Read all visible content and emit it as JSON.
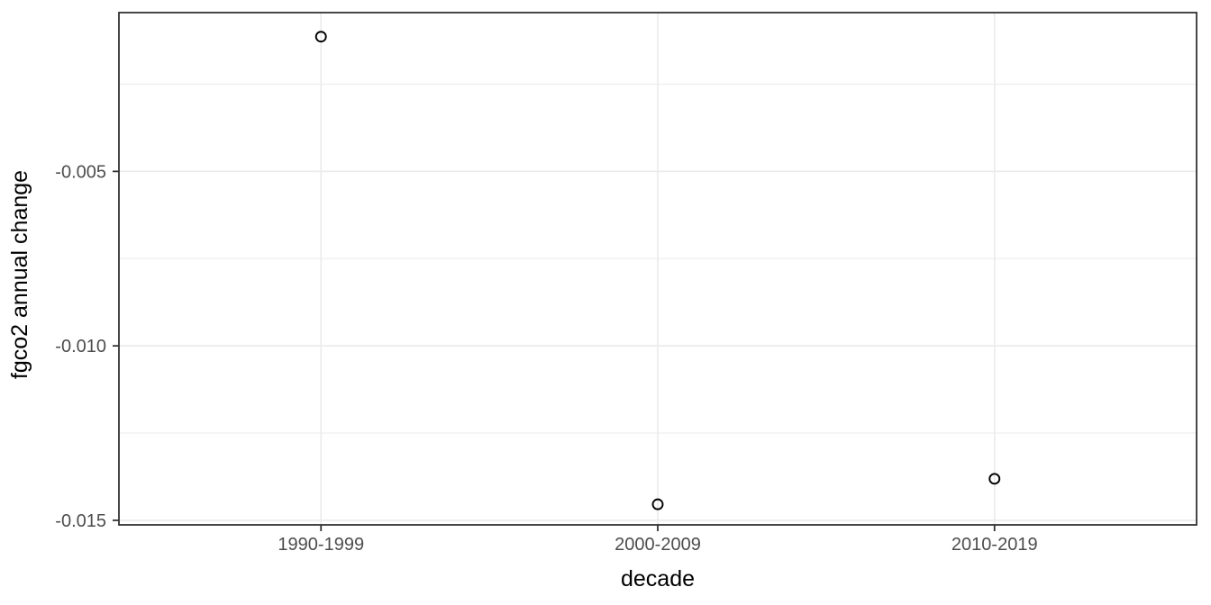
{
  "chart_data": {
    "type": "scatter",
    "title": "",
    "xlabel": "decade",
    "ylabel": "fgco2 annual change",
    "categories": [
      "1990-1999",
      "2000-2009",
      "2010-2019"
    ],
    "values": [
      -0.00114,
      -0.01454,
      -0.01381
    ],
    "x_type": "categorical",
    "x_expansion": 0.6,
    "yticks": [
      -0.005,
      -0.01,
      -0.015
    ],
    "ytick_labels": [
      "-0.005",
      "-0.010",
      "-0.015"
    ],
    "yminor_ticks": [
      -0.0025,
      -0.0075,
      -0.0125
    ],
    "ylim": [
      -0.01513,
      -0.00045
    ],
    "grid": "major-and-minor",
    "legend_position": "none",
    "point_style": {
      "shape": "open-circle",
      "radius": 5.5,
      "stroke": "#000000",
      "stroke_width": 1.9,
      "fill": "none"
    },
    "colors": {
      "background": "#ffffff",
      "panel_background": "#ffffff",
      "panel_border": "#333333",
      "grid_major": "#ebebeb",
      "grid_minor": "#ebebeb",
      "tick_mark": "#333333",
      "tick_label": "#4d4d4d",
      "axis_title": "#000000",
      "point": "#000000"
    }
  }
}
